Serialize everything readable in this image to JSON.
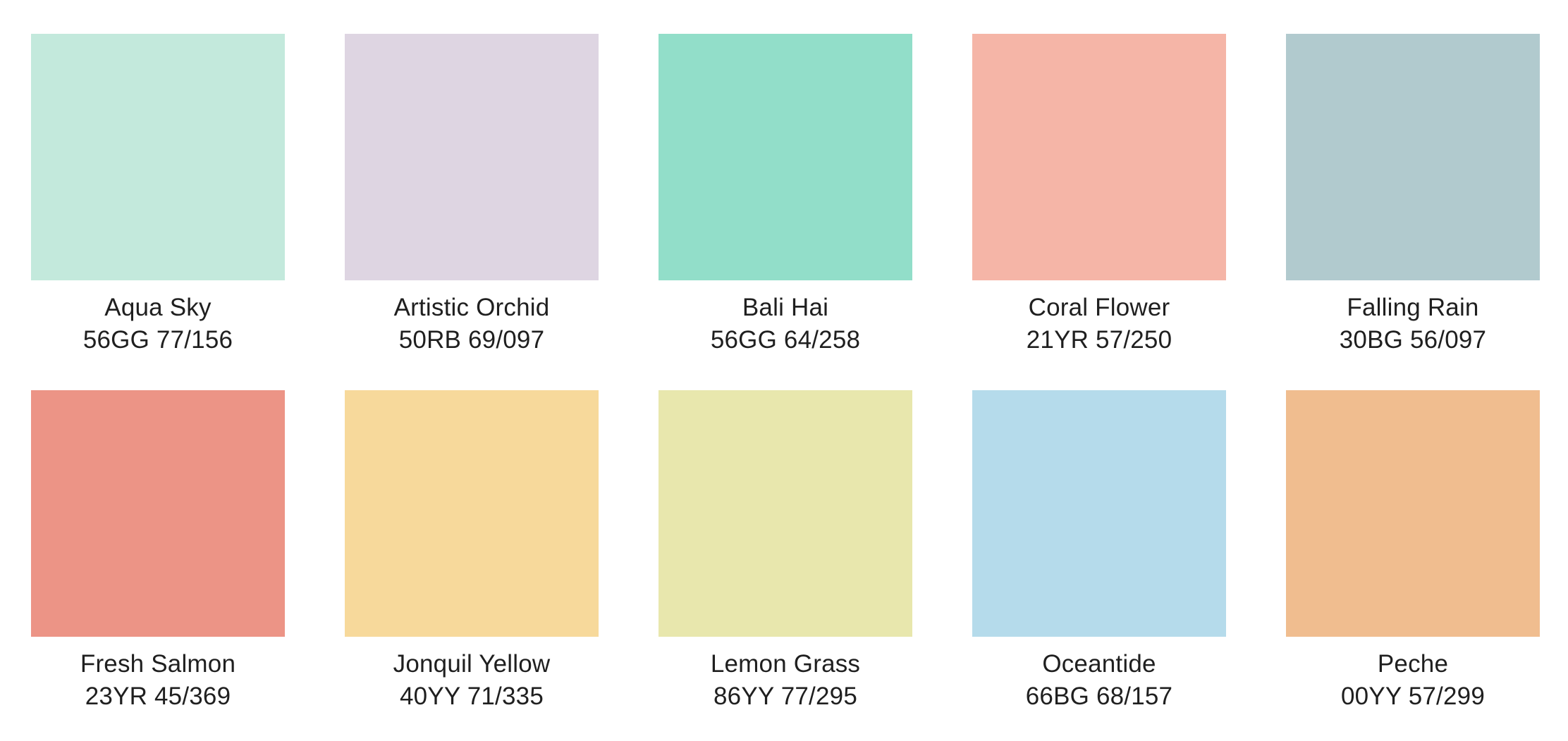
{
  "page": {
    "background": "#ffffff",
    "text_color": "#1f1f1f"
  },
  "swatches": [
    {
      "name": "Aqua Sky",
      "code": "56GG 77/156",
      "color": "#C3E9DC"
    },
    {
      "name": "Artistic Orchid",
      "code": "50RB 69/097",
      "color": "#DED5E2"
    },
    {
      "name": "Bali Hai",
      "code": "56GG 64/258",
      "color": "#92DEC9"
    },
    {
      "name": "Coral Flower",
      "code": "21YR 57/250",
      "color": "#F5B5A7"
    },
    {
      "name": "Falling Rain",
      "code": "30BG 56/097",
      "color": "#B1CACE"
    },
    {
      "name": "Fresh Salmon",
      "code": "23YR 45/369",
      "color": "#EC9486"
    },
    {
      "name": "Jonquil Yellow",
      "code": "40YY 71/335",
      "color": "#F7D99B"
    },
    {
      "name": "Lemon Grass",
      "code": "86YY 77/295",
      "color": "#E8E7AD"
    },
    {
      "name": "Oceantide",
      "code": "66BG 68/157",
      "color": "#B5DBEB"
    },
    {
      "name": "Peche",
      "code": "00YY 57/299",
      "color": "#F0BD8F"
    }
  ]
}
